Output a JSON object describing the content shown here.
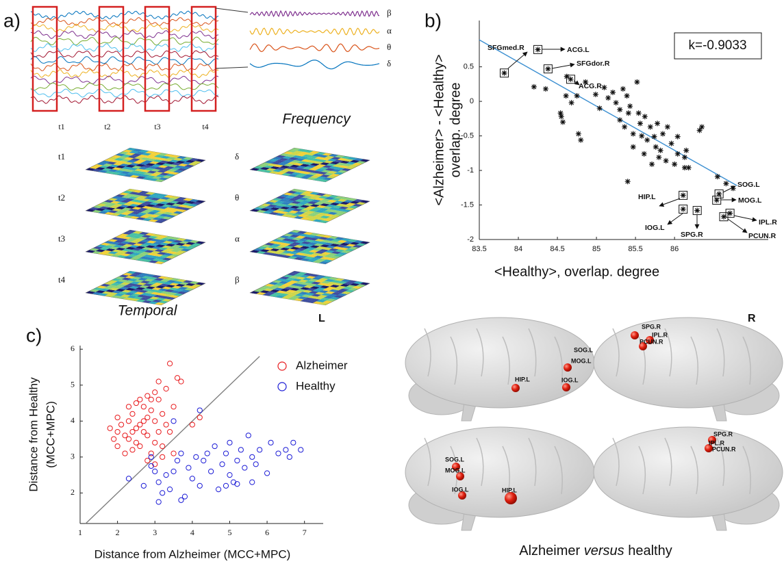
{
  "panel_labels": [
    "a)",
    "b)",
    "c)"
  ],
  "panel_a": {
    "time_windows": [
      "t1",
      "t2",
      "t3",
      "t4"
    ],
    "bands": [
      "β",
      "α",
      "θ",
      "δ"
    ],
    "frequency_title": "Frequency",
    "temporal_title": "Temporal",
    "temporal_layers": [
      "t1",
      "t2",
      "t3",
      "t4"
    ],
    "frequency_layers": [
      "δ",
      "θ",
      "α",
      "β"
    ]
  },
  "chart_data": [
    {
      "type": "scatter",
      "marker": "star",
      "xlabel": "<Healthy>, overlap. degree",
      "ylabel": [
        "<Alzheimer> - <Healthy>",
        "overlap. degree"
      ],
      "annotation": "k=-0.9033",
      "xlim": [
        83.5,
        87.2
      ],
      "ylim": [
        -2,
        1.17
      ],
      "xticks": [
        83.5,
        84,
        84.5,
        85,
        85.5,
        86
      ],
      "yticks": [
        -2,
        -1.5,
        -1,
        -0.5,
        0,
        0.5
      ],
      "fit_line": {
        "x": [
          83.5,
          86.8
        ],
        "values": [
          0.89,
          -1.22
        ],
        "color": "#3b8fd1"
      },
      "x": [
        84.2,
        84.35,
        84.62,
        84.61,
        84.54,
        84.55,
        84.57,
        84.68,
        84.75,
        84.77,
        84.8,
        84.86,
        84.99,
        85.04,
        85.1,
        85.15,
        85.21,
        85.25,
        85.3,
        85.3,
        85.34,
        85.36,
        85.39,
        85.41,
        85.43,
        85.47,
        85.47,
        85.52,
        85.54,
        85.56,
        85.58,
        85.61,
        85.62,
        85.65,
        85.69,
        85.71,
        85.74,
        85.76,
        85.78,
        85.82,
        85.85,
        85.89,
        85.91,
        85.96,
        86.0,
        86.04,
        86.13,
        86.18,
        86.32,
        86.35,
        85.4,
        86.55,
        86.66,
        86.75,
        85.8,
        86.04,
        86.13,
        86.15
      ],
      "values": [
        0.21,
        0.18,
        0.36,
        0.08,
        -0.17,
        -0.22,
        -0.3,
        -0.02,
        0.08,
        -0.47,
        -0.56,
        0.28,
        0.1,
        -0.1,
        0.2,
        0.05,
        0.13,
        -0.02,
        -0.12,
        -0.27,
        0.18,
        -0.37,
        0.08,
        -0.17,
        -0.07,
        -0.47,
        -0.66,
        0.28,
        -0.17,
        -0.32,
        -0.5,
        -0.76,
        -0.22,
        -0.56,
        -0.37,
        -0.91,
        -0.51,
        -0.66,
        -0.32,
        -0.71,
        -0.47,
        -0.86,
        -0.37,
        -0.61,
        -0.91,
        -0.51,
        -0.96,
        -0.96,
        -0.42,
        -0.37,
        -1.16,
        -1.09,
        -1.19,
        -1.26,
        -0.81,
        -0.76,
        -0.81,
        -0.71
      ],
      "labeled_points": {
        "labels": [
          "SFGmed.R",
          "ACG.L",
          "SFGdor.R",
          "ACG.R",
          "SOG.L",
          "MOG.L",
          "HIP.L",
          "IOG.L",
          "SPG.R",
          "IPL.R",
          "PCUN.R"
        ],
        "x": [
          83.82,
          84.25,
          84.38,
          84.67,
          86.57,
          86.54,
          86.11,
          86.11,
          86.29,
          86.71,
          86.63
        ],
        "values": [
          0.41,
          0.75,
          0.47,
          0.32,
          -1.34,
          -1.43,
          -1.36,
          -1.56,
          -1.58,
          -1.62,
          -1.67
        ]
      }
    },
    {
      "type": "scatter",
      "marker": "circle",
      "xlabel": "Distance from Alzheimer (MCC+MPC)",
      "ylabel": [
        "Distance from Healthy",
        "(MCC+MPC)"
      ],
      "xlim": [
        1,
        7.5
      ],
      "ylim": [
        1.15,
        6.1
      ],
      "xticks": [
        1,
        2,
        3,
        4,
        5,
        6,
        7
      ],
      "yticks": [
        2,
        3,
        4,
        5,
        6
      ],
      "reference_line": {
        "x": [
          1.15,
          5.8
        ],
        "values": [
          1.15,
          5.8
        ],
        "color": "#808080"
      },
      "legend": "upper right",
      "series": [
        {
          "name": "Alzheimer",
          "color": "#e8191c",
          "x": [
            2.0,
            1.8,
            2.1,
            2.2,
            2.3,
            2.3,
            2.4,
            2.4,
            2.5,
            2.5,
            2.6,
            2.6,
            2.7,
            2.7,
            2.8,
            2.8,
            2.9,
            2.9,
            3.0,
            3.0,
            3.0,
            3.1,
            3.1,
            3.1,
            3.2,
            3.2,
            3.3,
            3.3,
            3.4,
            3.5,
            3.6,
            3.7,
            2.2,
            2.0,
            2.6,
            2.8,
            3.0,
            3.2,
            4.0,
            4.2,
            1.9,
            2.4,
            2.7,
            2.9,
            3.4,
            2.5,
            3.5,
            2.8,
            2.0,
            2.3
          ],
          "values": [
            3.3,
            3.8,
            3.9,
            3.6,
            4.0,
            3.5,
            3.7,
            4.2,
            3.8,
            3.4,
            3.9,
            3.3,
            4.4,
            4.0,
            4.7,
            3.6,
            4.3,
            3.1,
            4.8,
            4.0,
            3.4,
            4.6,
            5.1,
            3.7,
            4.2,
            3.0,
            4.9,
            3.9,
            5.6,
            4.4,
            5.2,
            5.1,
            3.1,
            4.1,
            4.6,
            4.1,
            2.8,
            3.3,
            3.9,
            4.1,
            3.5,
            3.2,
            3.7,
            4.6,
            3.7,
            4.5,
            3.1,
            2.9,
            3.7,
            4.4
          ]
        },
        {
          "name": "Healthy",
          "color": "#1a1ad6",
          "x": [
            2.3,
            2.7,
            2.9,
            3.0,
            3.1,
            3.1,
            3.2,
            3.4,
            3.5,
            3.6,
            3.7,
            3.7,
            3.8,
            3.9,
            4.0,
            4.1,
            4.2,
            4.3,
            4.5,
            4.6,
            4.7,
            4.8,
            4.9,
            5.0,
            5.0,
            5.1,
            5.2,
            5.2,
            5.3,
            5.4,
            5.5,
            5.6,
            5.7,
            5.8,
            6.0,
            6.1,
            6.3,
            6.5,
            6.6,
            6.7,
            6.9,
            4.2,
            3.5,
            2.9,
            3.3,
            4.4,
            5.6,
            4.9
          ],
          "values": [
            2.4,
            2.2,
            3.0,
            2.6,
            2.3,
            1.75,
            2.0,
            2.1,
            2.6,
            2.9,
            1.8,
            3.1,
            1.9,
            2.7,
            2.4,
            3.0,
            2.2,
            2.9,
            2.6,
            3.3,
            2.1,
            2.8,
            3.1,
            2.5,
            3.4,
            2.3,
            2.9,
            2.25,
            3.2,
            2.7,
            3.6,
            3.0,
            2.8,
            3.2,
            2.55,
            3.4,
            3.1,
            3.2,
            3.0,
            3.4,
            3.2,
            4.3,
            4.0,
            2.75,
            2.5,
            3.1,
            2.3,
            2.2
          ]
        }
      ]
    }
  ],
  "brain_panel": {
    "hemisphere_labels": [
      "L",
      "R"
    ],
    "views": [
      {
        "regions": [
          "SOG.L",
          "MOG.L",
          "HIP.L",
          "IOG.L"
        ]
      },
      {
        "regions": [
          "SPG.R",
          "IPL.R",
          "PCUN.R"
        ]
      },
      {
        "regions": [
          "SOG.L",
          "MOG.L",
          "IOG.L",
          "HIP.L"
        ]
      },
      {
        "regions": [
          "SPG.R",
          "IPL.R",
          "PCUN.R"
        ]
      }
    ],
    "caption": {
      "before": "Alzheimer",
      "emphasis": "versus",
      "after": "healthy"
    }
  }
}
